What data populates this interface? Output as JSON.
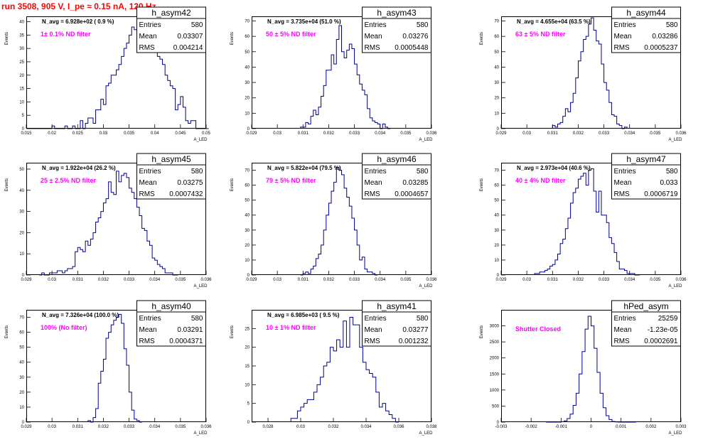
{
  "header": {
    "title": "run 3508,   905 V, I_pe ≈ 0.15 nA, 120 Hz"
  },
  "chart_data": [
    {
      "type": "bar",
      "name": "h_asym42",
      "n_avg": "N_avg = 6.928e+02 ( 0.9 %)",
      "filter": "1± 0.1% ND filter",
      "stats": {
        "entries": "580",
        "mean": "0.03307",
        "rms": "0.004214"
      },
      "xlabel": "A_LED",
      "ylabel": "Events",
      "xlim": [
        0.015,
        0.05
      ],
      "ylim": [
        0,
        42
      ],
      "xticks": [
        "0.015",
        "0.02",
        "0.025",
        "0.03",
        "0.035",
        "0.04",
        "0.045",
        "0.05"
      ],
      "yticks": [
        "0",
        "5",
        "10",
        "15",
        "20",
        "25",
        "30",
        "35",
        "40"
      ],
      "x_start": 0.0155,
      "bin_width": 0.0005,
      "values": [
        0,
        0,
        0,
        0,
        0,
        0,
        0,
        0,
        0,
        1,
        0,
        0,
        0,
        0,
        1,
        0,
        0,
        1,
        0,
        0,
        3,
        0,
        2,
        4,
        4,
        2,
        7,
        7,
        11,
        9,
        16,
        17,
        20,
        20,
        22,
        24,
        27,
        30,
        32,
        35,
        38,
        37,
        38,
        40,
        38,
        36,
        35,
        33,
        32,
        30,
        27,
        26,
        24,
        20,
        18,
        16,
        15,
        7,
        9,
        12,
        8,
        3,
        2,
        3,
        3,
        0,
        0,
        0,
        0,
        0
      ]
    },
    {
      "type": "bar",
      "name": "h_asym43",
      "n_avg": "N_avg = 3.735e+04 (51.0 %)",
      "filter": "50 ± 5% ND filter",
      "stats": {
        "entries": "580",
        "mean": "0.03276",
        "rms": "0.0005448"
      },
      "xlabel": "A_LED",
      "ylabel": "Events",
      "xlim": [
        0.029,
        0.036
      ],
      "ylim": [
        0,
        73
      ],
      "xticks": [
        "0.029",
        "0.03",
        "0.031",
        "0.032",
        "0.033",
        "0.034",
        "0.035",
        "0.036"
      ],
      "yticks": [
        "0",
        "10",
        "20",
        "30",
        "40",
        "50",
        "60",
        "70"
      ],
      "x_start": 0.0309,
      "bin_width": 0.0001,
      "values": [
        1,
        1,
        4,
        3,
        8,
        12,
        9,
        14,
        21,
        28,
        38,
        38,
        48,
        42,
        58,
        67,
        50,
        46,
        51,
        55,
        52,
        42,
        35,
        29,
        25,
        22,
        13,
        7,
        5,
        4,
        3,
        0,
        3,
        1,
        0
      ]
    },
    {
      "type": "bar",
      "name": "h_asym44",
      "n_avg": "N_avg = 4.655e+04 (63.5 %)",
      "filter": "63 ± 5% ND filter",
      "stats": {
        "entries": "580",
        "mean": "0.03286",
        "rms": "0.0005237"
      },
      "xlabel": "A_LED",
      "ylabel": "Events",
      "xlim": [
        0.029,
        0.036
      ],
      "ylim": [
        0,
        73
      ],
      "xticks": [
        "0.029",
        "0.03",
        "0.031",
        "0.032",
        "0.033",
        "0.034",
        "0.035",
        "0.036"
      ],
      "yticks": [
        "0",
        "10",
        "20",
        "30",
        "40",
        "50",
        "60",
        "70"
      ],
      "x_start": 0.031,
      "bin_width": 0.0001,
      "values": [
        2,
        1,
        3,
        4,
        8,
        13,
        11,
        17,
        23,
        33,
        44,
        50,
        58,
        60,
        68,
        72,
        64,
        57,
        55,
        42,
        30,
        25,
        17,
        9,
        8,
        3,
        2,
        0,
        1
      ]
    },
    {
      "type": "bar",
      "name": "h_asym45",
      "n_avg": "N_avg = 1.922e+04 (26.2 %)",
      "filter": "25 ± 2.5% ND filter",
      "stats": {
        "entries": "580",
        "mean": "0.03275",
        "rms": "0.0007432"
      },
      "xlabel": "A_LED",
      "ylabel": "Events",
      "xlim": [
        0.029,
        0.036
      ],
      "ylim": [
        0,
        53
      ],
      "xticks": [
        "0.029",
        "0.03",
        "0.031",
        "0.032",
        "0.033",
        "0.034",
        "0.035",
        "0.036"
      ],
      "yticks": [
        "0",
        "10",
        "20",
        "30",
        "40",
        "50"
      ],
      "x_start": 0.0295,
      "bin_width": 0.0001,
      "values": [
        0,
        1,
        0,
        0,
        1,
        1,
        1,
        2,
        2,
        1,
        2,
        3,
        3,
        4,
        11,
        13,
        12,
        11,
        16,
        14,
        17,
        20,
        25,
        27,
        30,
        34,
        36,
        44,
        39,
        38,
        49,
        44,
        47,
        48,
        46,
        41,
        39,
        36,
        32,
        28,
        22,
        21,
        16,
        14,
        8,
        7,
        5,
        4,
        3,
        1,
        1,
        1,
        0,
        0
      ]
    },
    {
      "type": "bar",
      "name": "h_asym46",
      "n_avg": "N_avg = 5.822e+04 (79.5 %)",
      "filter": "79 ± 5% ND filter",
      "stats": {
        "entries": "580",
        "mean": "0.03285",
        "rms": "0.0004657"
      },
      "xlabel": "A_LED",
      "ylabel": "Events",
      "xlim": [
        0.029,
        0.036
      ],
      "ylim": [
        0,
        75
      ],
      "xticks": [
        "0.029",
        "0.03",
        "0.031",
        "0.032",
        "0.033",
        "0.034",
        "0.035",
        "0.036"
      ],
      "yticks": [
        "0",
        "10",
        "20",
        "30",
        "40",
        "50",
        "60",
        "70"
      ],
      "x_start": 0.0309,
      "bin_width": 0.0001,
      "values": [
        0,
        1,
        2,
        1,
        4,
        6,
        11,
        14,
        20,
        30,
        40,
        48,
        56,
        62,
        72,
        70,
        67,
        58,
        52,
        46,
        38,
        30,
        20,
        10,
        12,
        4,
        2,
        2,
        1,
        0
      ]
    },
    {
      "type": "bar",
      "name": "h_asym47",
      "n_avg": "N_avg = 2.973e+04 (40.6 %)",
      "filter": "40 ± 4% ND filter",
      "stats": {
        "entries": "580",
        "mean": "0.033",
        "rms": "0.0006719"
      },
      "xlabel": "A_LED",
      "ylabel": "Events",
      "xlim": [
        0.029,
        0.036
      ],
      "ylim": [
        0,
        75
      ],
      "xticks": [
        "0.029",
        "0.03",
        "0.031",
        "0.032",
        "0.033",
        "0.034",
        "0.035",
        "0.036"
      ],
      "yticks": [
        "0",
        "10",
        "20",
        "30",
        "40",
        "50",
        "60",
        "70"
      ],
      "x_start": 0.0303,
      "bin_width": 0.0001,
      "values": [
        1,
        1,
        2,
        2,
        3,
        4,
        6,
        7,
        10,
        14,
        21,
        24,
        31,
        38,
        48,
        55,
        58,
        64,
        66,
        68,
        60,
        70,
        71,
        56,
        42,
        56,
        40,
        40,
        35,
        25,
        21,
        15,
        9,
        4,
        4,
        3,
        1,
        1,
        1,
        0,
        0
      ]
    },
    {
      "type": "bar",
      "name": "h_asym40",
      "n_avg": "N_avg = 7.326e+04 (100.0 %)",
      "filter": "100% (No filter)",
      "stats": {
        "entries": "580",
        "mean": "0.03291",
        "rms": "0.0004371"
      },
      "xlabel": "A_LED",
      "ylabel": "Events",
      "xlim": [
        0.029,
        0.036
      ],
      "ylim": [
        0,
        75
      ],
      "xticks": [
        "0.029",
        "0.03",
        "0.031",
        "0.032",
        "0.033",
        "0.034",
        "0.035",
        "0.036"
      ],
      "yticks": [
        "0",
        "10",
        "20",
        "30",
        "40",
        "50",
        "60",
        "70"
      ],
      "x_start": 0.0314,
      "bin_width": 0.0001,
      "values": [
        1,
        0,
        3,
        9,
        26,
        34,
        42,
        56,
        60,
        65,
        68,
        70,
        72,
        66,
        49,
        38,
        20,
        8,
        2,
        1,
        0
      ]
    },
    {
      "type": "bar",
      "name": "h_asym41",
      "n_avg": "N_avg = 6.985e+03 ( 9.5 %)",
      "filter": "10 ± 1% ND filter",
      "stats": {
        "entries": "580",
        "mean": "0.03277",
        "rms": "0.001232"
      },
      "xlabel": "A_LED",
      "ylabel": "Events",
      "xlim": [
        0.027,
        0.038
      ],
      "ylim": [
        0,
        30
      ],
      "xticks": [
        "0.028",
        "0.03",
        "0.032",
        "0.034",
        "0.036",
        "0.038"
      ],
      "yticks": [
        "0",
        "5",
        "10",
        "15",
        "20",
        "25"
      ],
      "x_start": 0.0294,
      "bin_width": 0.0002,
      "values": [
        1,
        1,
        3,
        4,
        5,
        6,
        6,
        8,
        10,
        12,
        15,
        16,
        20,
        19,
        22,
        20,
        27,
        20,
        28,
        26,
        26,
        20,
        16,
        14,
        13,
        12,
        8,
        4,
        5,
        3,
        2,
        1,
        0
      ]
    },
    {
      "type": "bar",
      "name": "hPed_asym",
      "n_avg": "",
      "filter": "Shutter Closed",
      "stats": {
        "entries": "25259",
        "mean": "-1.23e-05",
        "rms": "0.0002691"
      },
      "xlabel": "A_LED",
      "ylabel": "Events",
      "xlim": [
        -0.003,
        0.003
      ],
      "ylim": [
        0,
        3500
      ],
      "xticks": [
        "-0.003",
        "-0.002",
        "-0.001",
        "0",
        "0.001",
        "0.002",
        "0.003"
      ],
      "yticks": [
        "0",
        "500",
        "1000",
        "1500",
        "2000",
        "2500",
        "3000"
      ],
      "x_start": -0.0015,
      "bin_width": 0.0001,
      "values": [
        0,
        0,
        0,
        0,
        0,
        10,
        40,
        110,
        250,
        520,
        900,
        1500,
        2200,
        2900,
        3300,
        3000,
        2300,
        1550,
        900,
        450,
        200,
        80,
        20,
        5,
        0,
        0,
        0,
        0,
        0,
        0
      ]
    }
  ]
}
